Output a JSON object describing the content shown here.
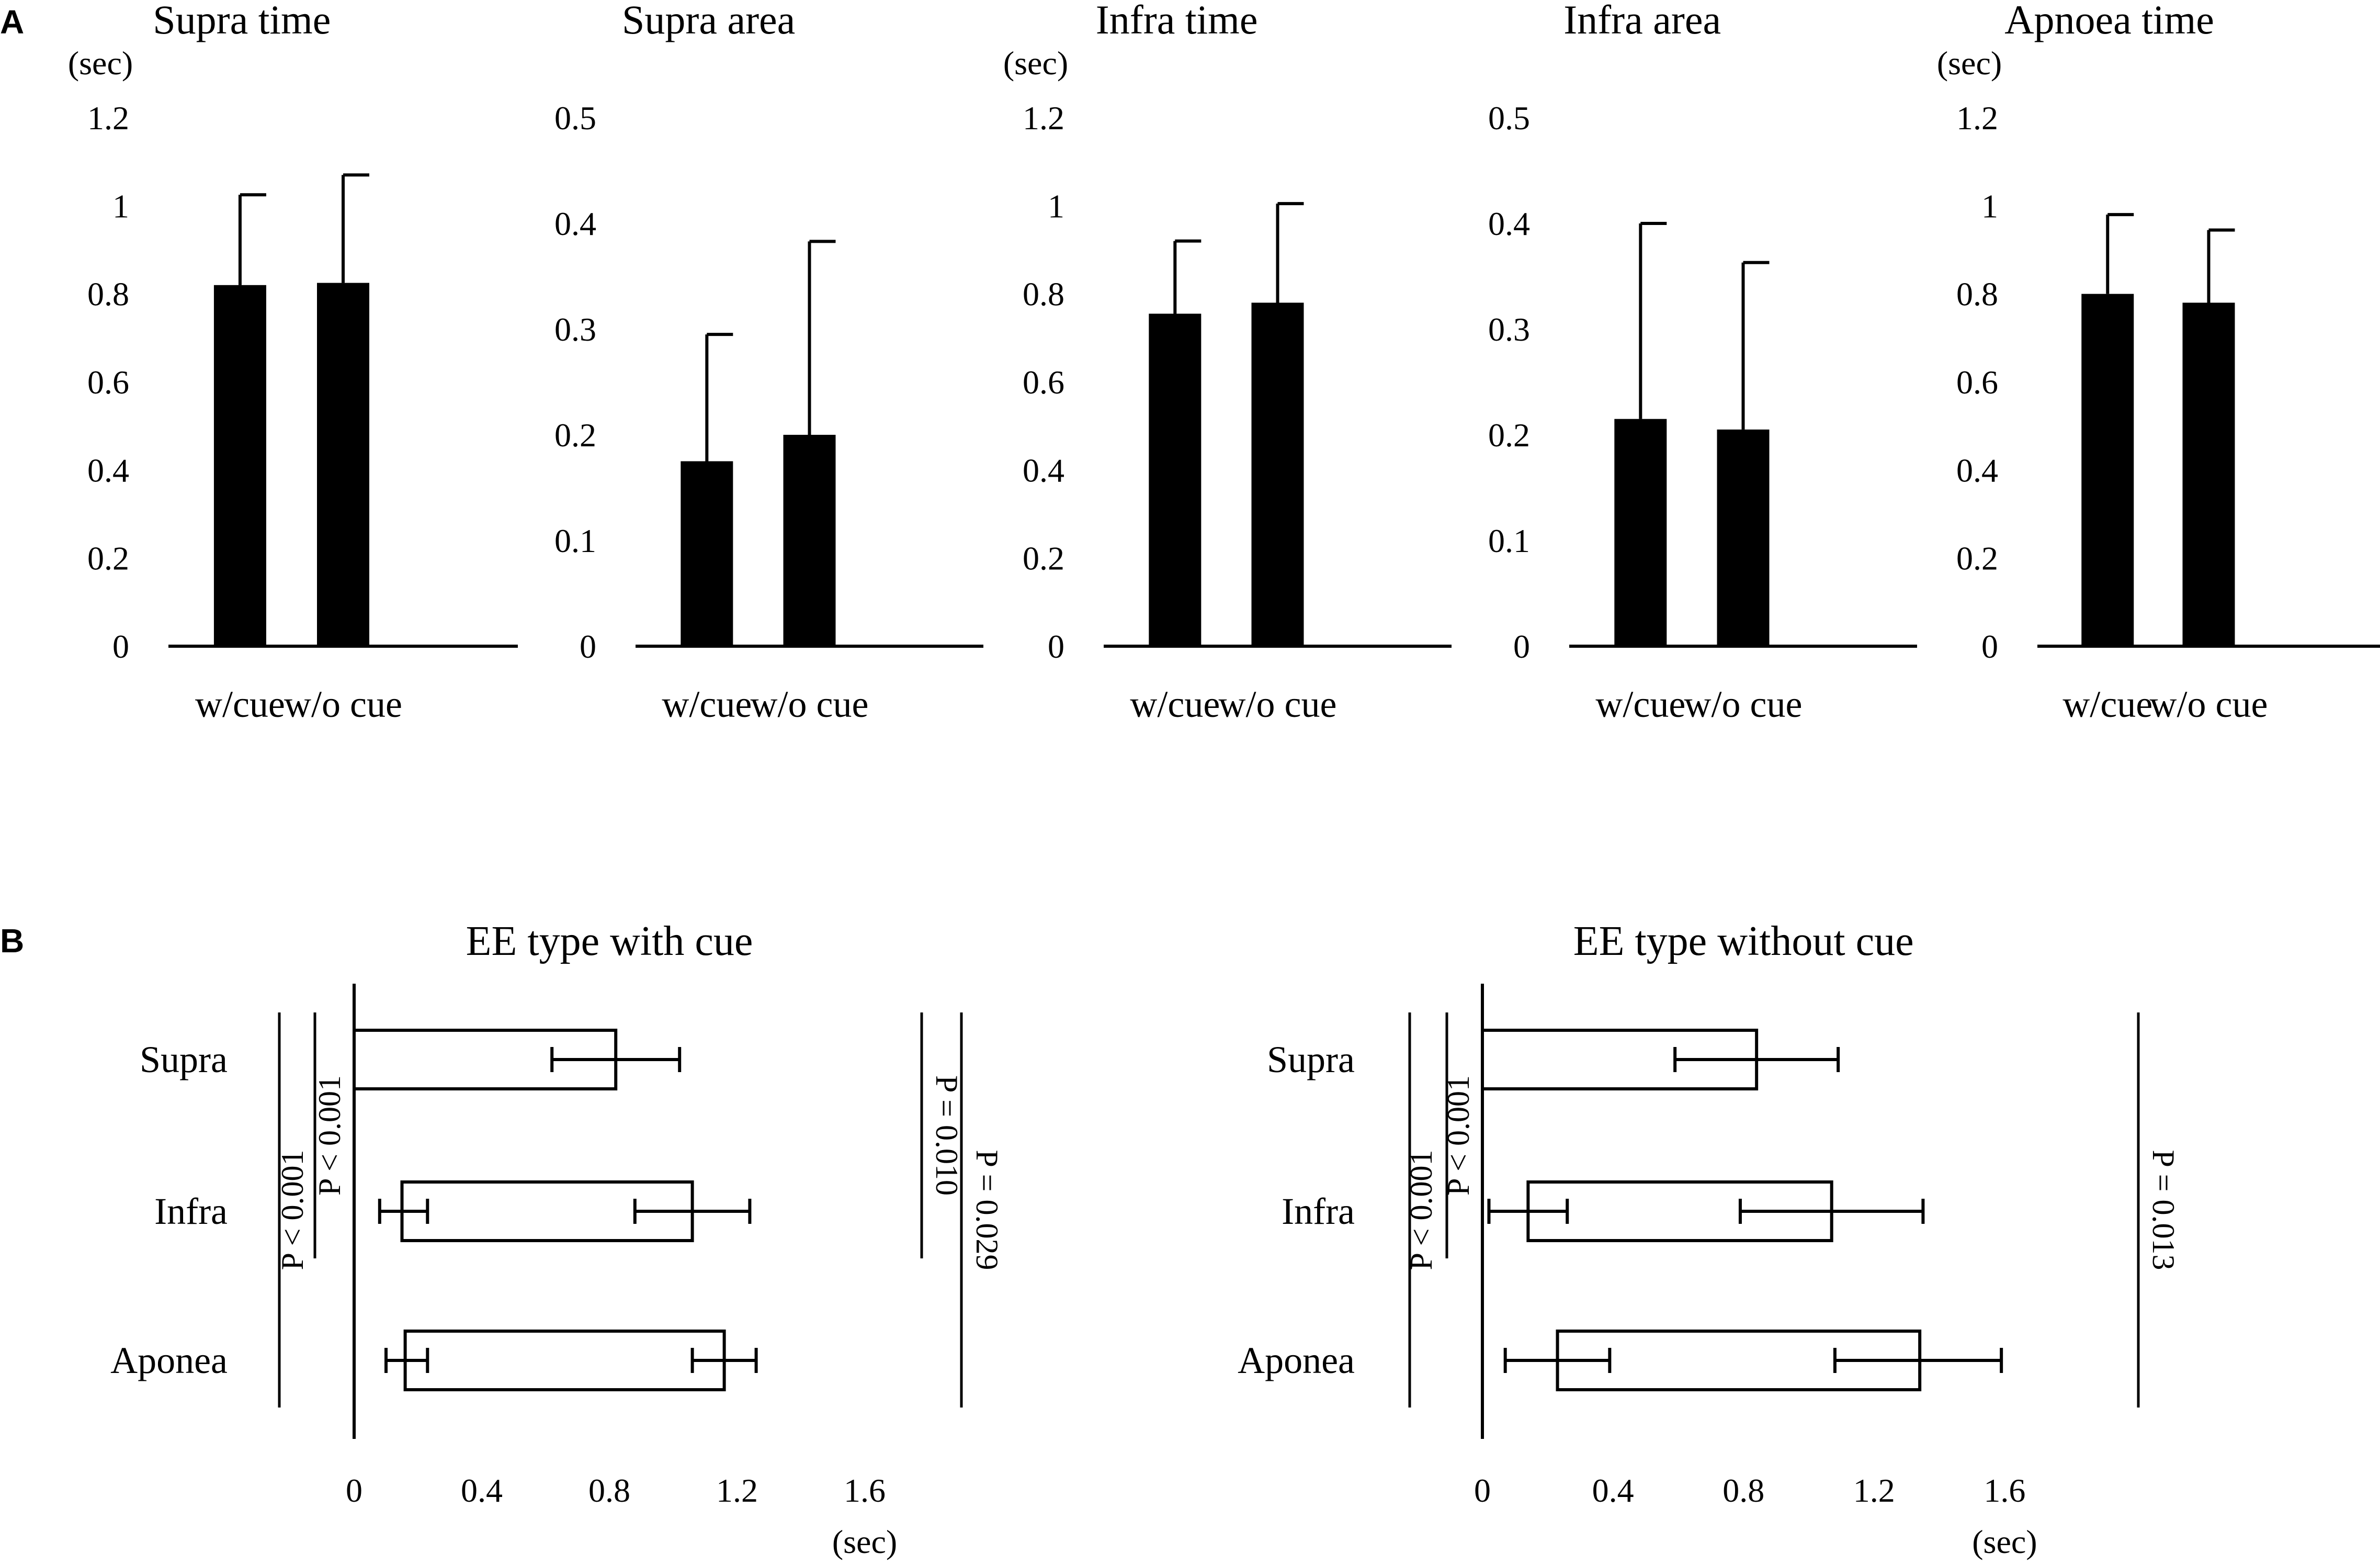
{
  "panel_labels": {
    "a": "A",
    "b": "B"
  },
  "chart_data": [
    {
      "type": "bar",
      "panel": "A",
      "title": "Supra time",
      "ylabel": "(sec)",
      "categories": [
        "w/cue",
        "w/o cue"
      ],
      "values": [
        0.82,
        0.825
      ],
      "error_plus": [
        0.205,
        0.245
      ],
      "ylim": [
        0,
        1.2
      ],
      "yticks": [
        "0",
        "0.2",
        "0.4",
        "0.6",
        "0.8",
        "1",
        "1.2"
      ]
    },
    {
      "type": "bar",
      "panel": "A",
      "title": "Supra area",
      "ylabel": "",
      "categories": [
        "w/cue",
        "w/o cue"
      ],
      "values": [
        0.175,
        0.2
      ],
      "error_plus": [
        0.12,
        0.183
      ],
      "ylim": [
        0,
        0.5
      ],
      "yticks": [
        "0",
        "0.1",
        "0.2",
        "0.3",
        "0.4",
        "0.5"
      ]
    },
    {
      "type": "bar",
      "panel": "A",
      "title": "Infra time",
      "ylabel": "(sec)",
      "categories": [
        "w/cue",
        "w/o cue"
      ],
      "values": [
        0.755,
        0.78
      ],
      "error_plus": [
        0.165,
        0.225
      ],
      "ylim": [
        0,
        1.2
      ],
      "yticks": [
        "0",
        "0.2",
        "0.4",
        "0.6",
        "0.8",
        "1",
        "1.2"
      ]
    },
    {
      "type": "bar",
      "panel": "A",
      "title": "Infra area",
      "ylabel": "",
      "categories": [
        "w/cue",
        "w/o cue"
      ],
      "values": [
        0.215,
        0.205
      ],
      "error_plus": [
        0.185,
        0.158
      ],
      "ylim": [
        0,
        0.5
      ],
      "yticks": [
        "0",
        "0.1",
        "0.2",
        "0.3",
        "0.4",
        "0.5"
      ]
    },
    {
      "type": "bar",
      "panel": "A",
      "title": "Apnoea time",
      "ylabel": "(sec)",
      "categories": [
        "w/cue",
        "w/o cue"
      ],
      "values": [
        0.8,
        0.78
      ],
      "error_plus": [
        0.18,
        0.165
      ],
      "ylim": [
        0,
        1.2
      ],
      "yticks": [
        "0",
        "0.2",
        "0.4",
        "0.6",
        "0.8",
        "1",
        "1.2"
      ]
    },
    {
      "type": "bar",
      "orientation": "horizontal",
      "panel": "B",
      "title": "EE type with cue",
      "xlabel": "(sec)",
      "xlim": [
        0,
        1.6
      ],
      "xticks": [
        "0",
        "0.4",
        "0.8",
        "1.2",
        "1.6"
      ],
      "categories": [
        "Supra",
        "Infra",
        "Aponea"
      ],
      "bars": [
        {
          "start": 0,
          "end": 0.82
        },
        {
          "start": 0.15,
          "end": 1.06
        },
        {
          "start": 0.16,
          "end": 1.16
        }
      ],
      "start_error": [
        null,
        [
          0.08,
          0.23
        ],
        [
          0.1,
          0.23
        ]
      ],
      "end_error": [
        [
          0.62,
          1.02
        ],
        [
          0.88,
          1.24
        ],
        [
          1.06,
          1.26
        ]
      ],
      "significance": [
        {
          "label": "P < 0.001",
          "between": [
            "Supra",
            "Aponea"
          ],
          "side": "left"
        },
        {
          "label": "P < 0.001",
          "between": [
            "Supra",
            "Infra"
          ],
          "side": "left"
        },
        {
          "label": "P = 0.010",
          "between": [
            "Supra",
            "Infra"
          ],
          "side": "right"
        },
        {
          "label": "P = 0.029",
          "between": [
            "Supra",
            "Aponea"
          ],
          "side": "right"
        }
      ]
    },
    {
      "type": "bar",
      "orientation": "horizontal",
      "panel": "B",
      "title": "EE type without cue",
      "xlabel": "(sec)",
      "xlim": [
        0,
        1.6
      ],
      "xticks": [
        "0",
        "0.4",
        "0.8",
        "1.2",
        "1.6"
      ],
      "categories": [
        "Supra",
        "Infra",
        "Aponea"
      ],
      "bars": [
        {
          "start": 0,
          "end": 0.84
        },
        {
          "start": 0.14,
          "end": 1.07
        },
        {
          "start": 0.23,
          "end": 1.34
        }
      ],
      "start_error": [
        null,
        [
          0.02,
          0.26
        ],
        [
          0.07,
          0.39
        ]
      ],
      "end_error": [
        [
          0.59,
          1.09
        ],
        [
          0.79,
          1.35
        ],
        [
          1.08,
          1.59
        ]
      ],
      "significance": [
        {
          "label": "P < 0.001",
          "between": [
            "Supra",
            "Aponea"
          ],
          "side": "left"
        },
        {
          "label": "P < 0.001",
          "between": [
            "Supra",
            "Infra"
          ],
          "side": "left"
        },
        {
          "label": "P = 0.013",
          "between": [
            "Supra",
            "Aponea"
          ],
          "side": "right"
        }
      ]
    }
  ]
}
